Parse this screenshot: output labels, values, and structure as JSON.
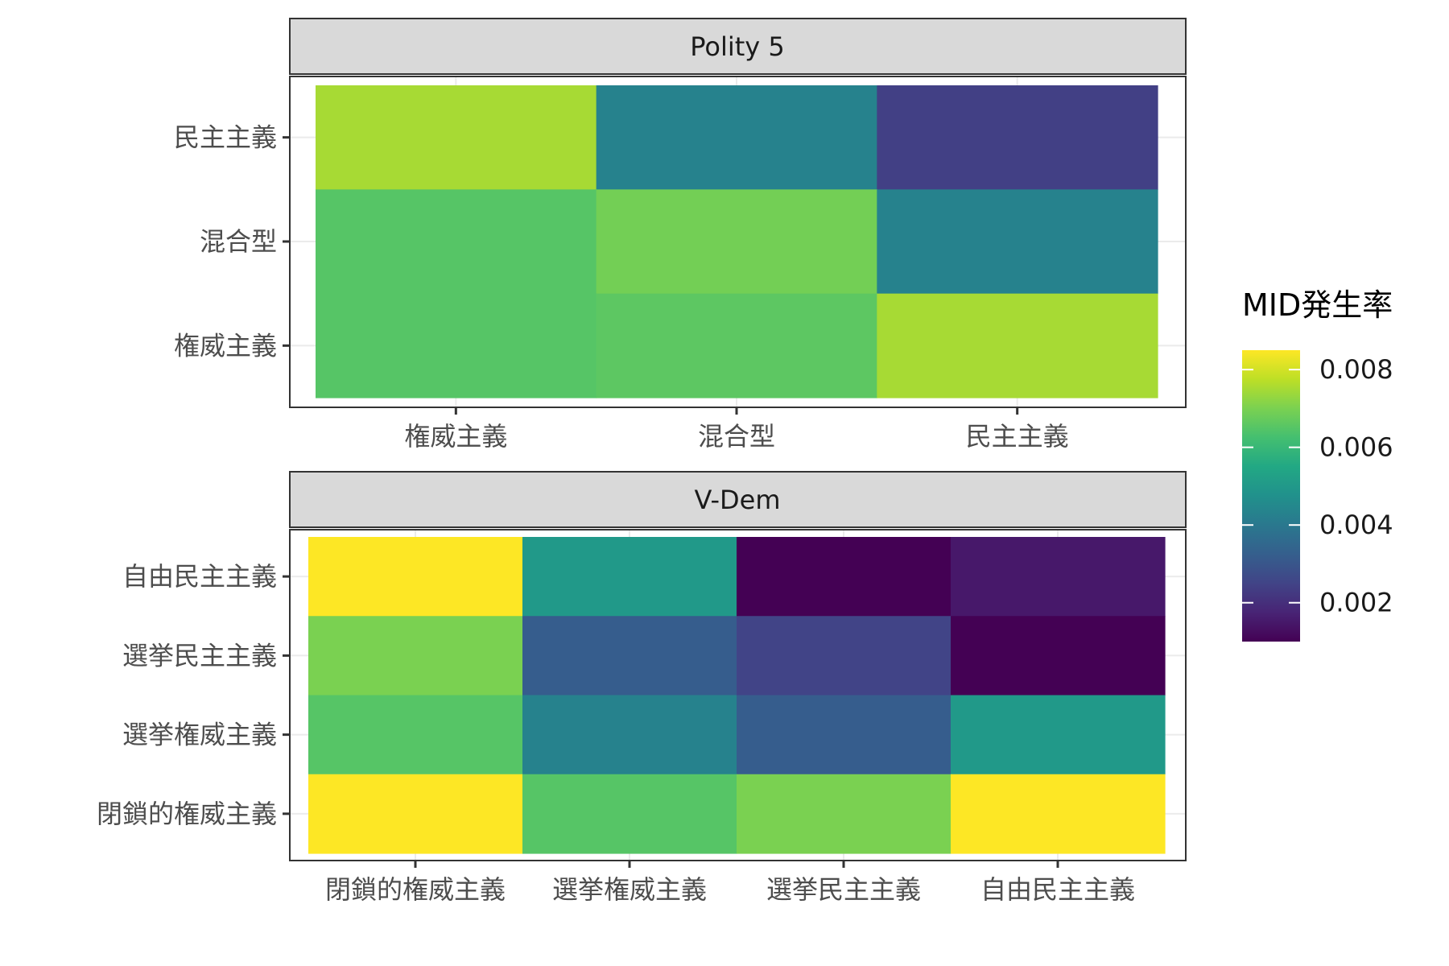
{
  "chart_data": [
    {
      "type": "heatmap",
      "title": "",
      "panel": "Polity 5",
      "xlabel": "",
      "ylabel": "",
      "x_categories": [
        "権威主義",
        "混合型",
        "民主主義"
      ],
      "y_categories": [
        "民主主義",
        "混合型",
        "権威主義"
      ],
      "values": [
        [
          0.0075,
          0.0043,
          0.0024
        ],
        [
          0.0065,
          0.0069,
          0.0043
        ],
        [
          0.0065,
          0.0066,
          0.0075
        ]
      ]
    },
    {
      "type": "heatmap",
      "title": "",
      "panel": "V-Dem",
      "xlabel": "",
      "ylabel": "",
      "x_categories": [
        "閉鎖的権威主義",
        "選挙権威主義",
        "選挙民主主義",
        "自由民主主義"
      ],
      "y_categories": [
        "自由民主主義",
        "選挙民主主義",
        "選挙権威主義",
        "閉鎖的権威主義"
      ],
      "values": [
        [
          0.0085,
          0.005,
          0.001,
          0.0015
        ],
        [
          0.007,
          0.0032,
          0.0025,
          0.001
        ],
        [
          0.0065,
          0.0043,
          0.0032,
          0.005
        ],
        [
          0.0085,
          0.0065,
          0.007,
          0.0085
        ]
      ]
    }
  ],
  "legend": {
    "title": "MID発生率",
    "colormap": "viridis",
    "range": [
      0.001,
      0.0085
    ],
    "breaks": [
      0.008,
      0.006,
      0.004,
      0.002
    ],
    "labels": [
      "0.008",
      "0.006",
      "0.004",
      "0.002"
    ]
  }
}
